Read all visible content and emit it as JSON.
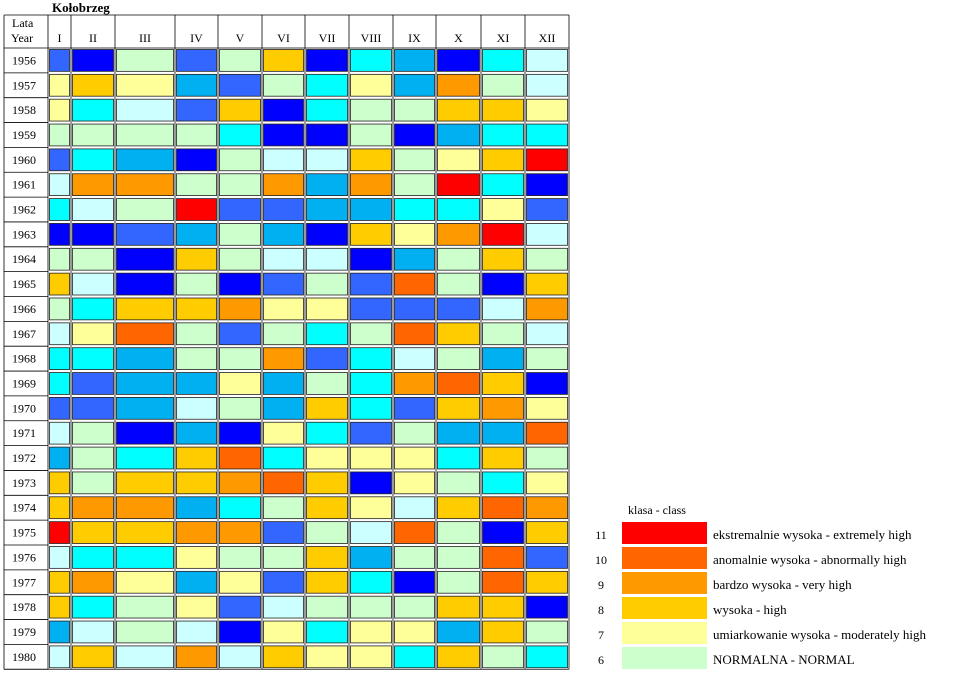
{
  "chart_data": {
    "type": "heatmap",
    "title": "Kołobrzeg",
    "corner_label_line1": "Lata",
    "corner_label_line2": "Year",
    "months": [
      "I",
      "II",
      "III",
      "IV",
      "V",
      "VI",
      "VII",
      "VIII",
      "IX",
      "X",
      "XI",
      "XII"
    ],
    "years": [
      "1956",
      "1957",
      "1958",
      "1959",
      "1960",
      "1961",
      "1962",
      "1963",
      "1964",
      "1965",
      "1966",
      "1967",
      "1968",
      "1969",
      "1970",
      "1971",
      "1972",
      "1973",
      "1974",
      "1975",
      "1976",
      "1977",
      "1978",
      "1979",
      "1980"
    ],
    "class_colors": {
      "1": "#0000ff",
      "2": "#3366ff",
      "3": "#00b0f0",
      "4": "#00ffff",
      "5": "#ccffff",
      "6": "#ccffcc",
      "7": "#ffff99",
      "8": "#ffcc00",
      "9": "#ff9900",
      "10": "#ff6600",
      "11": "#ff0000"
    },
    "classes": [
      [
        2,
        1,
        6,
        2,
        6,
        8,
        1,
        4,
        3,
        1,
        4,
        5
      ],
      [
        7,
        8,
        7,
        3,
        2,
        6,
        4,
        7,
        3,
        9,
        6,
        5
      ],
      [
        7,
        4,
        5,
        2,
        8,
        1,
        4,
        6,
        6,
        8,
        8,
        7
      ],
      [
        6,
        6,
        6,
        6,
        4,
        1,
        1,
        6,
        1,
        3,
        4,
        4
      ],
      [
        2,
        4,
        3,
        1,
        6,
        5,
        5,
        8,
        6,
        7,
        8,
        11
      ],
      [
        5,
        9,
        9,
        6,
        6,
        9,
        3,
        9,
        6,
        11,
        4,
        1
      ],
      [
        4,
        5,
        6,
        11,
        2,
        2,
        3,
        3,
        4,
        4,
        7,
        2
      ],
      [
        1,
        1,
        2,
        3,
        6,
        3,
        1,
        8,
        7,
        9,
        11,
        5
      ],
      [
        6,
        6,
        1,
        8,
        6,
        5,
        5,
        1,
        3,
        6,
        8,
        6
      ],
      [
        8,
        5,
        1,
        6,
        1,
        2,
        6,
        2,
        10,
        6,
        1,
        8
      ],
      [
        6,
        4,
        8,
        8,
        9,
        7,
        7,
        2,
        2,
        2,
        5,
        9
      ],
      [
        5,
        7,
        10,
        6,
        2,
        6,
        4,
        6,
        10,
        8,
        6,
        5
      ],
      [
        4,
        4,
        3,
        6,
        6,
        9,
        2,
        4,
        5,
        6,
        3,
        6
      ],
      [
        4,
        2,
        3,
        3,
        7,
        3,
        6,
        4,
        9,
        10,
        8,
        1
      ],
      [
        2,
        2,
        3,
        5,
        6,
        3,
        8,
        4,
        2,
        8,
        9,
        7
      ],
      [
        5,
        6,
        1,
        3,
        1,
        7,
        4,
        2,
        6,
        3,
        3,
        10
      ],
      [
        3,
        6,
        4,
        8,
        10,
        4,
        7,
        7,
        7,
        4,
        8,
        6
      ],
      [
        8,
        6,
        8,
        8,
        9,
        10,
        8,
        1,
        7,
        6,
        4,
        7
      ],
      [
        8,
        9,
        9,
        3,
        4,
        6,
        8,
        7,
        5,
        8,
        10,
        9
      ],
      [
        11,
        8,
        8,
        9,
        9,
        2,
        6,
        5,
        10,
        6,
        1,
        8
      ],
      [
        5,
        4,
        4,
        7,
        6,
        6,
        8,
        3,
        6,
        6,
        10,
        2
      ],
      [
        8,
        9,
        7,
        3,
        7,
        2,
        8,
        4,
        1,
        6,
        10,
        8
      ],
      [
        8,
        4,
        6,
        7,
        2,
        5,
        6,
        6,
        6,
        8,
        8,
        1
      ],
      [
        3,
        5,
        6,
        5,
        1,
        7,
        4,
        7,
        7,
        3,
        8,
        6
      ],
      [
        5,
        8,
        5,
        9,
        5,
        8,
        7,
        7,
        4,
        8,
        6,
        4
      ]
    ],
    "legend": {
      "title": "klasa - class",
      "items": [
        {
          "class": "11",
          "label": "ekstremalnie wysoka - extremely high"
        },
        {
          "class": "10",
          "label": "anomalnie wysoka - abnormally high"
        },
        {
          "class": "9",
          "label": "bardzo wysoka - very high"
        },
        {
          "class": "8",
          "label": "wysoka - high"
        },
        {
          "class": "7",
          "label": "umiarkowanie wysoka - moderately high"
        },
        {
          "class": "6",
          "label": "NORMALNA - NORMAL"
        }
      ]
    }
  }
}
